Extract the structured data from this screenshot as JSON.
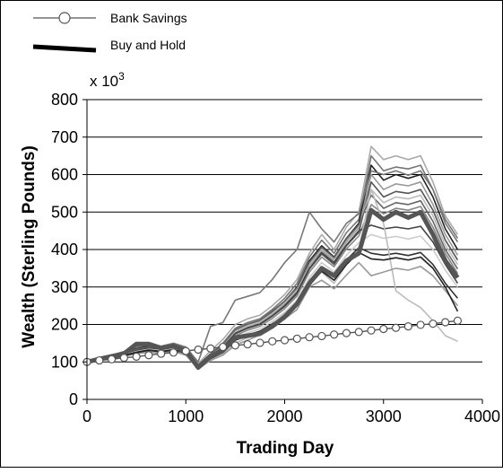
{
  "chart_data": {
    "type": "line",
    "xlabel": "Trading Day",
    "ylabel": "Wealth (Sterling Pounds)",
    "y_multiplier_label": "x 10",
    "y_multiplier_exp": "3",
    "xlim": [
      0,
      4000
    ],
    "ylim": [
      0,
      800
    ],
    "xticks": [
      0,
      1000,
      2000,
      3000,
      4000
    ],
    "yticks": [
      0,
      100,
      200,
      300,
      400,
      500,
      600,
      700,
      800
    ],
    "grid": "horizontal",
    "legend": [
      {
        "label": "Bank Savings",
        "style": "thin line with open circle markers",
        "color": "#555555"
      },
      {
        "label": "Buy and Hold",
        "style": "thick line",
        "color": "#000000"
      }
    ],
    "x": [
      0,
      125,
      250,
      375,
      500,
      625,
      750,
      875,
      1000,
      1125,
      1250,
      1375,
      1500,
      1625,
      1750,
      1875,
      2000,
      2125,
      2250,
      2375,
      2500,
      2625,
      2750,
      2875,
      3000,
      3125,
      3250,
      3375,
      3500,
      3625,
      3750
    ],
    "series": [
      {
        "name": "Bank Savings",
        "color": "#555555",
        "values": [
          100,
          104,
          107,
          111,
          114,
          118,
          122,
          125,
          129,
          133,
          136,
          140,
          144,
          147,
          151,
          155,
          158,
          162,
          166,
          169,
          173,
          177,
          180,
          184,
          188,
          191,
          195,
          199,
          202,
          206,
          210
        ]
      },
      {
        "name": "Buy and Hold",
        "color": "#555555",
        "values": [
          100,
          108,
          115,
          122,
          148,
          148,
          137,
          143,
          130,
          85,
          115,
          130,
          165,
          170,
          175,
          195,
          220,
          255,
          310,
          350,
          330,
          370,
          390,
          505,
          480,
          500,
          485,
          500,
          440,
          370,
          325
        ]
      },
      {
        "name": "",
        "color": "#aaaaaa",
        "values": [
          100,
          106,
          113,
          121,
          130,
          140,
          136,
          145,
          135,
          95,
          130,
          160,
          200,
          215,
          225,
          250,
          280,
          320,
          390,
          440,
          400,
          460,
          500,
          675,
          640,
          650,
          640,
          650,
          580,
          490,
          440
        ]
      },
      {
        "name": "",
        "color": "#777777",
        "values": [
          100,
          108,
          116,
          125,
          138,
          145,
          140,
          146,
          138,
          92,
          122,
          150,
          190,
          205,
          215,
          240,
          270,
          310,
          380,
          425,
          390,
          445,
          480,
          650,
          610,
          620,
          615,
          625,
          560,
          470,
          420
        ]
      },
      {
        "name": "",
        "color": "#222222",
        "values": [
          100,
          107,
          114,
          123,
          135,
          142,
          138,
          144,
          134,
          90,
          120,
          145,
          185,
          200,
          210,
          235,
          262,
          300,
          370,
          410,
          380,
          430,
          470,
          625,
          585,
          600,
          590,
          600,
          540,
          455,
          400
        ]
      },
      {
        "name": "",
        "color": "#999999",
        "values": [
          100,
          105,
          112,
          120,
          132,
          138,
          134,
          140,
          131,
          88,
          118,
          140,
          180,
          195,
          205,
          228,
          255,
          290,
          358,
          398,
          370,
          420,
          458,
          600,
          560,
          575,
          570,
          580,
          520,
          440,
          385
        ]
      },
      {
        "name": "",
        "color": "#555555",
        "values": [
          100,
          104,
          111,
          119,
          130,
          136,
          132,
          138,
          129,
          86,
          116,
          138,
          175,
          190,
          200,
          222,
          248,
          282,
          348,
          388,
          360,
          410,
          446,
          580,
          540,
          555,
          550,
          560,
          505,
          425,
          372
        ]
      },
      {
        "name": "",
        "color": "#bbbbbb",
        "values": [
          100,
          106,
          113,
          121,
          133,
          139,
          135,
          141,
          132,
          89,
          119,
          143,
          182,
          197,
          207,
          230,
          258,
          294,
          362,
          402,
          374,
          424,
          462,
          560,
          525,
          540,
          535,
          545,
          490,
          412,
          360
        ]
      },
      {
        "name": "",
        "color": "#666666",
        "values": [
          100,
          107,
          114,
          122,
          134,
          140,
          136,
          142,
          133,
          90,
          121,
          146,
          186,
          201,
          211,
          234,
          262,
          298,
          366,
          406,
          378,
          428,
          466,
          545,
          510,
          525,
          520,
          530,
          475,
          400,
          348
        ]
      },
      {
        "name": "",
        "color": "#888888",
        "values": [
          100,
          105,
          110,
          118,
          128,
          134,
          130,
          136,
          127,
          85,
          113,
          133,
          170,
          185,
          195,
          216,
          242,
          276,
          340,
          380,
          354,
          402,
          436,
          520,
          495,
          510,
          505,
          515,
          460,
          390,
          336
        ]
      },
      {
        "name": "",
        "color": "#444444",
        "values": [
          100,
          106,
          112,
          120,
          130,
          137,
          133,
          139,
          130,
          88,
          117,
          139,
          176,
          191,
          201,
          223,
          250,
          285,
          350,
          392,
          365,
          412,
          450,
          465,
          455,
          460,
          455,
          462,
          420,
          360,
          310
        ]
      },
      {
        "name": "",
        "color": "#cccccc",
        "values": [
          100,
          106,
          112,
          119,
          128,
          134,
          130,
          135,
          126,
          84,
          112,
          130,
          165,
          178,
          188,
          208,
          232,
          265,
          325,
          365,
          340,
          385,
          418,
          440,
          430,
          435,
          428,
          436,
          400,
          345,
          300
        ]
      },
      {
        "name": "",
        "color": "#333333",
        "values": [
          100,
          105,
          111,
          118,
          126,
          132,
          128,
          133,
          124,
          83,
          110,
          127,
          160,
          172,
          182,
          202,
          225,
          256,
          315,
          352,
          330,
          372,
          405,
          390,
          385,
          390,
          384,
          392,
          360,
          310,
          270
        ]
      },
      {
        "name": "",
        "color": "#777777",
        "values": [
          100,
          108,
          118,
          128,
          140,
          146,
          142,
          150,
          140,
          100,
          195,
          205,
          265,
          275,
          285,
          320,
          365,
          400,
          500,
          455,
          420,
          470,
          495,
          610,
          600,
          610,
          598,
          610,
          560,
          480,
          430
        ]
      },
      {
        "name": "",
        "color": "#bbbbbb",
        "values": [
          100,
          105,
          110,
          116,
          123,
          128,
          125,
          130,
          120,
          80,
          105,
          120,
          150,
          165,
          180,
          200,
          230,
          255,
          320,
          340,
          310,
          360,
          400,
          560,
          470,
          290,
          265,
          245,
          210,
          170,
          155
        ]
      },
      {
        "name": "",
        "color": "#999999",
        "values": [
          100,
          104,
          109,
          115,
          122,
          126,
          123,
          128,
          118,
          82,
          104,
          118,
          145,
          158,
          172,
          190,
          215,
          240,
          300,
          318,
          295,
          332,
          365,
          330,
          340,
          350,
          345,
          355,
          330,
          290,
          250
        ]
      },
      {
        "name": "",
        "color": "#222222",
        "values": [
          100,
          105,
          110,
          117,
          125,
          131,
          127,
          132,
          123,
          84,
          109,
          125,
          158,
          170,
          181,
          200,
          222,
          250,
          305,
          342,
          318,
          360,
          392,
          375,
          372,
          378,
          372,
          380,
          350,
          300,
          235
        ]
      }
    ]
  }
}
